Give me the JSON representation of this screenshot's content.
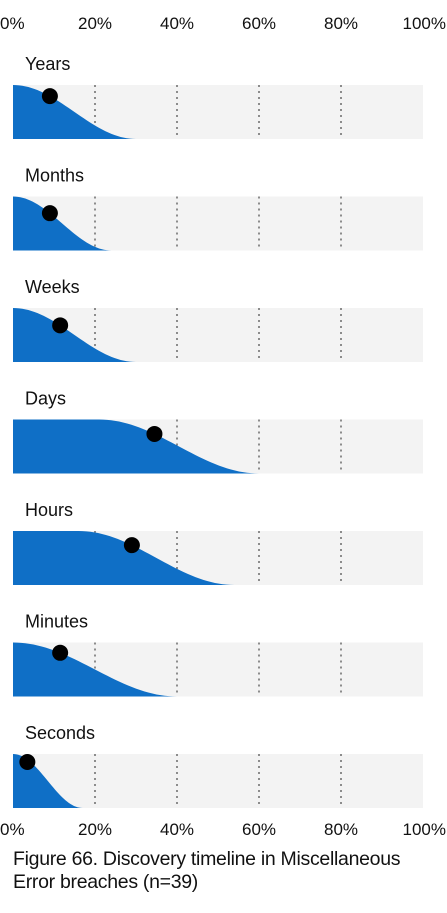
{
  "caption": "Figure 66. Discovery timeline in Miscellaneous Error breaches (n=39)",
  "colors": {
    "fill": "#0f6fc6",
    "band": "#f3f3f3",
    "dot": "#000000",
    "grid": "#555555",
    "text": "#111111"
  },
  "chart_data": {
    "type": "area",
    "orientation": "horizontal",
    "title": "Figure 66. Discovery timeline in Miscellaneous Error breaches (n=39)",
    "x_ticks": [
      "0%",
      "20%",
      "40%",
      "60%",
      "80%",
      "100%"
    ],
    "xlim": [
      0,
      100
    ],
    "grid": "dotted vertical lines at 20%, 40%, 60%, 80%",
    "series": [
      {
        "name": "Years",
        "full_until": 0,
        "end": 30,
        "point": 9
      },
      {
        "name": "Months",
        "full_until": 0,
        "end": 24,
        "point": 9
      },
      {
        "name": "Weeks",
        "full_until": 0,
        "end": 30,
        "point": 11.5
      },
      {
        "name": "Days",
        "full_until": 21,
        "end": 60,
        "point": 34.5
      },
      {
        "name": "Hours",
        "full_until": 16,
        "end": 54,
        "point": 29
      },
      {
        "name": "Minutes",
        "full_until": 0,
        "end": 40,
        "point": 11.5
      },
      {
        "name": "Seconds",
        "full_until": 0,
        "end": 17,
        "point": 3.5
      }
    ]
  }
}
